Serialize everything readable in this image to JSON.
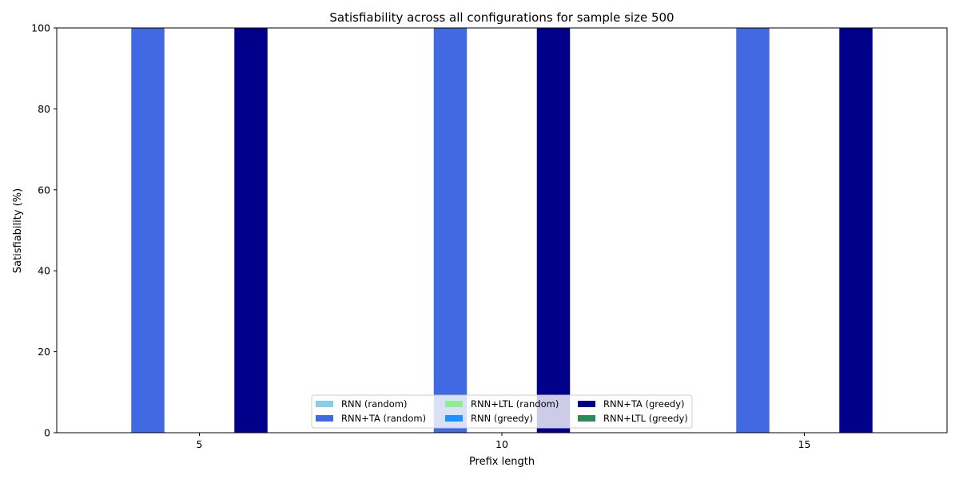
{
  "chart_data": {
    "type": "bar",
    "title": "Satisfiability across all configurations for sample size 500",
    "xlabel": "Prefix length",
    "ylabel": "Satisfiability (%)",
    "categories": [
      "5",
      "10",
      "15"
    ],
    "ylim": [
      0,
      100
    ],
    "yticks": [
      0,
      20,
      40,
      60,
      80,
      100
    ],
    "grid": false,
    "legend_position": "lower-center",
    "legend_columns": 3,
    "series": [
      {
        "name": "RNN (random)",
        "color": "#87CEEB",
        "values": [
          0,
          0,
          0
        ]
      },
      {
        "name": "RNN+TA (random)",
        "color": "#4169E1",
        "values": [
          100,
          100,
          100
        ]
      },
      {
        "name": "RNN+LTL (random)",
        "color": "#90EE90",
        "values": [
          0,
          0,
          0
        ]
      },
      {
        "name": "RNN (greedy)",
        "color": "#1E90FF",
        "values": [
          0,
          0,
          0
        ]
      },
      {
        "name": "RNN+TA (greedy)",
        "color": "#00008B",
        "values": [
          100,
          100,
          100
        ]
      },
      {
        "name": "RNN+LTL (greedy)",
        "color": "#2E8B57",
        "values": [
          0,
          0,
          0
        ]
      }
    ]
  }
}
